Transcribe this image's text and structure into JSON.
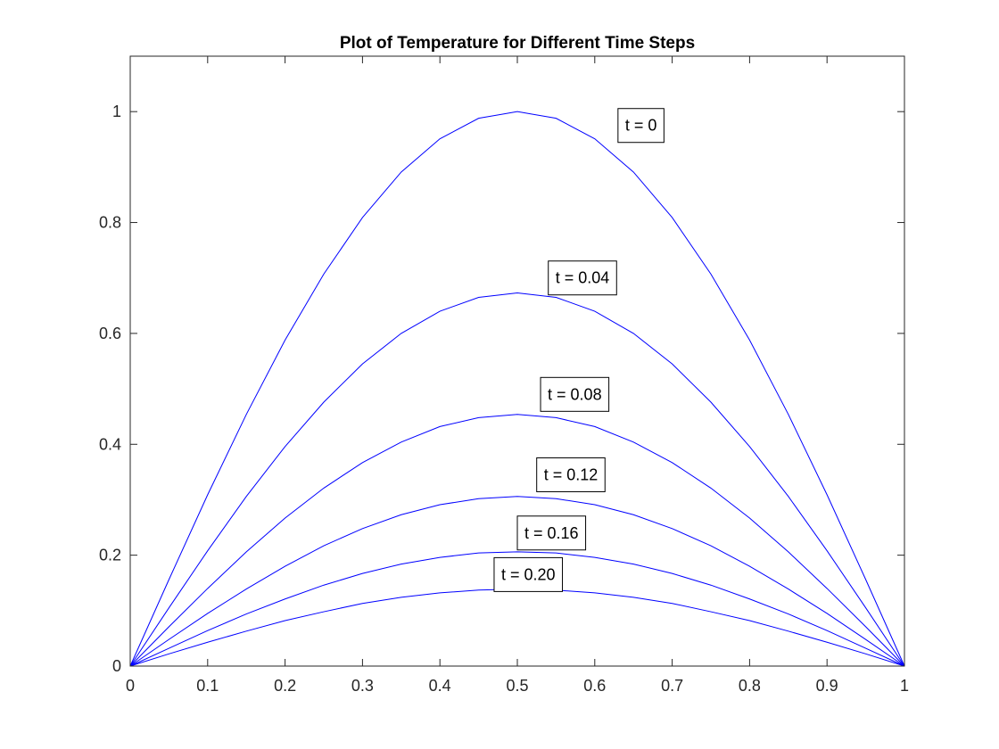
{
  "chart_data": {
    "type": "line",
    "title": "Plot of Temperature for Different Time Steps",
    "xlabel": "",
    "ylabel": "",
    "xlim": [
      0,
      1
    ],
    "ylim": [
      0,
      1.1
    ],
    "xticks": [
      "0",
      "0.1",
      "0.2",
      "0.3",
      "0.4",
      "0.5",
      "0.6",
      "0.7",
      "0.8",
      "0.9",
      "1"
    ],
    "yticks": [
      "0",
      "0.2",
      "0.4",
      "0.6",
      "0.8",
      "1"
    ],
    "grid": false,
    "legend": "none",
    "line_color": "#0000ff",
    "x": [
      0,
      0.05,
      0.1,
      0.15,
      0.2,
      0.25,
      0.3,
      0.35,
      0.4,
      0.45,
      0.5,
      0.55,
      0.6,
      0.65,
      0.7,
      0.75,
      0.8,
      0.85,
      0.9,
      0.95,
      1
    ],
    "series": [
      {
        "values": [
          0,
          0.156,
          0.309,
          0.454,
          0.588,
          0.707,
          0.809,
          0.891,
          0.951,
          0.988,
          1.0,
          0.988,
          0.951,
          0.891,
          0.809,
          0.707,
          0.588,
          0.454,
          0.309,
          0.156,
          0
        ]
      },
      {
        "values": [
          0,
          0.105,
          0.208,
          0.306,
          0.396,
          0.476,
          0.545,
          0.6,
          0.64,
          0.665,
          0.673,
          0.665,
          0.64,
          0.6,
          0.545,
          0.476,
          0.396,
          0.306,
          0.208,
          0.105,
          0
        ]
      },
      {
        "values": [
          0,
          0.071,
          0.14,
          0.206,
          0.267,
          0.321,
          0.367,
          0.404,
          0.432,
          0.448,
          0.454,
          0.448,
          0.432,
          0.404,
          0.367,
          0.321,
          0.267,
          0.206,
          0.14,
          0.071,
          0
        ]
      },
      {
        "values": [
          0,
          0.048,
          0.095,
          0.139,
          0.18,
          0.217,
          0.248,
          0.273,
          0.291,
          0.302,
          0.306,
          0.302,
          0.291,
          0.273,
          0.248,
          0.217,
          0.18,
          0.139,
          0.095,
          0.048,
          0
        ]
      },
      {
        "values": [
          0,
          0.032,
          0.064,
          0.094,
          0.121,
          0.146,
          0.167,
          0.184,
          0.196,
          0.204,
          0.206,
          0.204,
          0.196,
          0.184,
          0.167,
          0.146,
          0.121,
          0.094,
          0.064,
          0.032,
          0
        ]
      },
      {
        "values": [
          0,
          0.022,
          0.043,
          0.063,
          0.082,
          0.098,
          0.113,
          0.124,
          0.132,
          0.137,
          0.139,
          0.137,
          0.132,
          0.124,
          0.113,
          0.098,
          0.082,
          0.063,
          0.043,
          0.022,
          0
        ]
      }
    ],
    "annotations": [
      {
        "text": "t = 0",
        "x": 0.63,
        "y": 0.975
      },
      {
        "text": "t = 0.04",
        "x": 0.54,
        "y": 0.7
      },
      {
        "text": "t = 0.08",
        "x": 0.53,
        "y": 0.49
      },
      {
        "text": "t = 0.12",
        "x": 0.525,
        "y": 0.345
      },
      {
        "text": "t = 0.16",
        "x": 0.5,
        "y": 0.24
      },
      {
        "text": "t = 0.20",
        "x": 0.47,
        "y": 0.165
      }
    ]
  }
}
